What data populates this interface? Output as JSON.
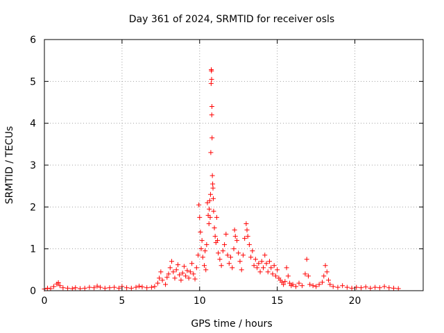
{
  "chart_data": {
    "type": "scatter",
    "title": "Day 361 of 2024, SRMTID for receiver osls",
    "xlabel": "GPS time / hours",
    "ylabel": "SRMTID / TECUs",
    "xlim": [
      0,
      24.4
    ],
    "ylim": [
      0,
      6
    ],
    "xticks": [
      0,
      5,
      10,
      15,
      20
    ],
    "yticks": [
      0,
      1,
      2,
      3,
      4,
      5,
      6
    ],
    "grid": true,
    "marker": "+",
    "colors": {
      "series": "#ff0000",
      "axis": "#000000",
      "grid": "#a0a0a0"
    },
    "series": [
      {
        "name": "SRMTID",
        "points": [
          [
            0.0,
            0.04
          ],
          [
            0.2,
            0.06
          ],
          [
            0.4,
            0.05
          ],
          [
            0.6,
            0.1
          ],
          [
            0.8,
            0.16
          ],
          [
            0.9,
            0.19
          ],
          [
            1.0,
            0.12
          ],
          [
            1.2,
            0.07
          ],
          [
            1.5,
            0.06
          ],
          [
            1.8,
            0.05
          ],
          [
            2.0,
            0.07
          ],
          [
            2.3,
            0.05
          ],
          [
            2.6,
            0.06
          ],
          [
            2.9,
            0.08
          ],
          [
            3.2,
            0.07
          ],
          [
            3.4,
            0.11
          ],
          [
            3.6,
            0.08
          ],
          [
            3.9,
            0.06
          ],
          [
            4.2,
            0.07
          ],
          [
            4.5,
            0.08
          ],
          [
            4.8,
            0.06
          ],
          [
            5.0,
            0.1
          ],
          [
            5.3,
            0.07
          ],
          [
            5.6,
            0.06
          ],
          [
            5.9,
            0.08
          ],
          [
            6.1,
            0.11
          ],
          [
            6.3,
            0.09
          ],
          [
            6.6,
            0.07
          ],
          [
            6.9,
            0.08
          ],
          [
            7.1,
            0.1
          ],
          [
            7.3,
            0.18
          ],
          [
            7.4,
            0.3
          ],
          [
            7.5,
            0.45
          ],
          [
            7.6,
            0.25
          ],
          [
            7.8,
            0.15
          ],
          [
            7.9,
            0.32
          ],
          [
            8.0,
            0.4
          ],
          [
            8.1,
            0.55
          ],
          [
            8.2,
            0.7
          ],
          [
            8.3,
            0.45
          ],
          [
            8.4,
            0.3
          ],
          [
            8.5,
            0.5
          ],
          [
            8.6,
            0.62
          ],
          [
            8.7,
            0.38
          ],
          [
            8.8,
            0.25
          ],
          [
            8.9,
            0.42
          ],
          [
            9.0,
            0.58
          ],
          [
            9.1,
            0.35
          ],
          [
            9.2,
            0.48
          ],
          [
            9.3,
            0.3
          ],
          [
            9.4,
            0.45
          ],
          [
            9.5,
            0.65
          ],
          [
            9.6,
            0.4
          ],
          [
            9.7,
            0.28
          ],
          [
            9.8,
            0.55
          ],
          [
            9.9,
            0.85
          ],
          [
            9.95,
            2.05
          ],
          [
            10.0,
            1.75
          ],
          [
            10.05,
            1.4
          ],
          [
            10.1,
            1.0
          ],
          [
            10.15,
            1.2
          ],
          [
            10.2,
            0.8
          ],
          [
            10.3,
            0.6
          ],
          [
            10.35,
            0.95
          ],
          [
            10.4,
            0.5
          ],
          [
            10.45,
            1.1
          ],
          [
            10.5,
            2.1
          ],
          [
            10.55,
            1.8
          ],
          [
            10.6,
            1.6
          ],
          [
            10.62,
            1.95
          ],
          [
            10.65,
            2.15
          ],
          [
            10.68,
            1.75
          ],
          [
            10.7,
            2.3
          ],
          [
            10.72,
            3.3
          ],
          [
            10.74,
            4.95
          ],
          [
            10.75,
            5.28
          ],
          [
            10.76,
            5.25
          ],
          [
            10.77,
            5.05
          ],
          [
            10.78,
            4.2
          ],
          [
            10.79,
            4.4
          ],
          [
            10.8,
            3.65
          ],
          [
            10.82,
            2.75
          ],
          [
            10.84,
            2.55
          ],
          [
            10.86,
            2.45
          ],
          [
            10.88,
            2.2
          ],
          [
            10.9,
            1.9
          ],
          [
            10.95,
            1.5
          ],
          [
            11.0,
            1.3
          ],
          [
            11.05,
            1.15
          ],
          [
            11.1,
            1.75
          ],
          [
            11.15,
            1.2
          ],
          [
            11.2,
            0.9
          ],
          [
            11.3,
            0.75
          ],
          [
            11.4,
            0.6
          ],
          [
            11.5,
            0.95
          ],
          [
            11.6,
            1.1
          ],
          [
            11.7,
            1.35
          ],
          [
            11.8,
            0.85
          ],
          [
            11.9,
            0.65
          ],
          [
            12.0,
            0.8
          ],
          [
            12.1,
            0.55
          ],
          [
            12.2,
            1.0
          ],
          [
            12.25,
            1.45
          ],
          [
            12.3,
            1.3
          ],
          [
            12.4,
            1.2
          ],
          [
            12.5,
            0.9
          ],
          [
            12.6,
            0.7
          ],
          [
            12.7,
            0.5
          ],
          [
            12.8,
            0.85
          ],
          [
            12.9,
            1.25
          ],
          [
            13.0,
            1.6
          ],
          [
            13.05,
            1.45
          ],
          [
            13.1,
            1.3
          ],
          [
            13.2,
            1.1
          ],
          [
            13.3,
            0.8
          ],
          [
            13.4,
            0.95
          ],
          [
            13.5,
            0.6
          ],
          [
            13.6,
            0.75
          ],
          [
            13.7,
            0.55
          ],
          [
            13.8,
            0.65
          ],
          [
            13.9,
            0.45
          ],
          [
            14.0,
            0.7
          ],
          [
            14.1,
            0.55
          ],
          [
            14.2,
            0.85
          ],
          [
            14.3,
            0.65
          ],
          [
            14.4,
            0.45
          ],
          [
            14.5,
            0.7
          ],
          [
            14.6,
            0.55
          ],
          [
            14.7,
            0.4
          ],
          [
            14.8,
            0.6
          ],
          [
            14.9,
            0.35
          ],
          [
            15.0,
            0.5
          ],
          [
            15.1,
            0.3
          ],
          [
            15.2,
            0.25
          ],
          [
            15.3,
            0.2
          ],
          [
            15.4,
            0.15
          ],
          [
            15.5,
            0.22
          ],
          [
            15.6,
            0.55
          ],
          [
            15.7,
            0.35
          ],
          [
            15.8,
            0.18
          ],
          [
            15.9,
            0.12
          ],
          [
            16.0,
            0.15
          ],
          [
            16.2,
            0.1
          ],
          [
            16.4,
            0.18
          ],
          [
            16.6,
            0.12
          ],
          [
            16.8,
            0.4
          ],
          [
            16.9,
            0.75
          ],
          [
            17.0,
            0.35
          ],
          [
            17.1,
            0.15
          ],
          [
            17.3,
            0.12
          ],
          [
            17.5,
            0.1
          ],
          [
            17.7,
            0.15
          ],
          [
            17.9,
            0.2
          ],
          [
            18.0,
            0.35
          ],
          [
            18.1,
            0.6
          ],
          [
            18.2,
            0.45
          ],
          [
            18.3,
            0.25
          ],
          [
            18.4,
            0.15
          ],
          [
            18.6,
            0.1
          ],
          [
            18.9,
            0.08
          ],
          [
            19.2,
            0.12
          ],
          [
            19.5,
            0.08
          ],
          [
            19.8,
            0.06
          ],
          [
            20.1,
            0.08
          ],
          [
            20.4,
            0.07
          ],
          [
            20.7,
            0.09
          ],
          [
            21.0,
            0.06
          ],
          [
            21.3,
            0.08
          ],
          [
            21.6,
            0.07
          ],
          [
            21.9,
            0.1
          ],
          [
            22.2,
            0.07
          ],
          [
            22.5,
            0.06
          ],
          [
            22.8,
            0.05
          ]
        ]
      }
    ]
  }
}
